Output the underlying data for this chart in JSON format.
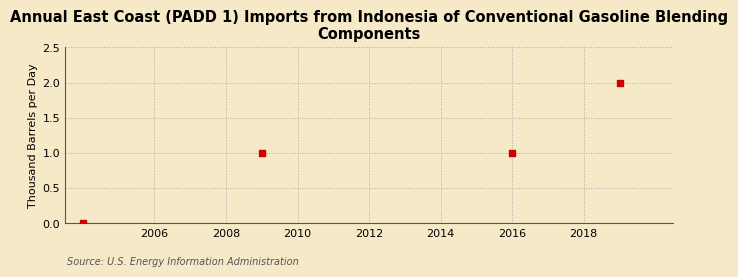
{
  "title_line1": "Annual East Coast (PADD 1) Imports from Indonesia of Conventional Gasoline Blending",
  "title_line2": "Components",
  "ylabel": "Thousand Barrels per Day",
  "source": "Source: U.S. Energy Information Administration",
  "background_color": "#f5e9c8",
  "plot_bg_color": "#f5e9c8",
  "data_points": [
    {
      "year": 2004,
      "value": 0
    },
    {
      "year": 2009,
      "value": 1.0
    },
    {
      "year": 2016,
      "value": 1.0
    },
    {
      "year": 2019,
      "value": 2.0
    }
  ],
  "xlim": [
    2003.5,
    2020.5
  ],
  "ylim": [
    0,
    2.5
  ],
  "xticks": [
    2006,
    2008,
    2010,
    2012,
    2014,
    2016,
    2018
  ],
  "yticks": [
    0.0,
    0.5,
    1.0,
    1.5,
    2.0,
    2.5
  ],
  "marker_color": "#cc0000",
  "marker_size": 4,
  "grid_color": "#aaaaaa",
  "title_fontsize": 10.5,
  "label_fontsize": 8,
  "tick_fontsize": 8,
  "source_fontsize": 7
}
